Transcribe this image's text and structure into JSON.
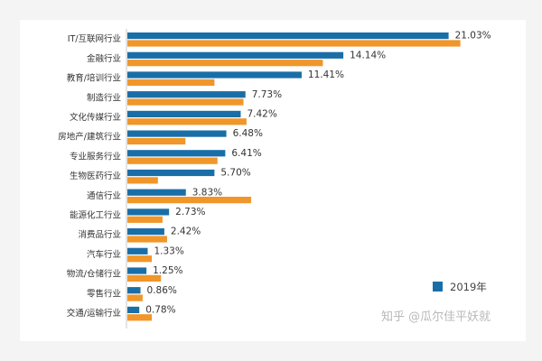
{
  "chart_data": {
    "type": "bar",
    "orientation": "horizontal",
    "categories": [
      "IT/互联网行业",
      "金融行业",
      "教育/培训行业",
      "制造行业",
      "文化传媒行业",
      "房地产/建筑行业",
      "专业服务行业",
      "生物医药行业",
      "通信行业",
      "能源化工行业",
      "消费品行业",
      "汽车行业",
      "物流/仓储行业",
      "零售行业",
      "交通/运输行业"
    ],
    "series": [
      {
        "name": "2019年",
        "color": "#1a6ea8",
        "values": [
          21.03,
          14.14,
          11.41,
          7.73,
          7.42,
          6.48,
          6.41,
          5.7,
          3.83,
          2.73,
          2.42,
          1.33,
          1.25,
          0.86,
          0.78
        ],
        "labels": [
          "21.03%",
          "14.14%",
          "11.41%",
          "7.73%",
          "7.42%",
          "6.48%",
          "6.41%",
          "5.70%",
          "3.83%",
          "2.73%",
          "2.42%",
          "1.33%",
          "1.25%",
          "0.86%",
          "0.78%"
        ]
      },
      {
        "color": "#f0962a",
        "values": [
          21.8,
          12.8,
          5.7,
          7.6,
          7.8,
          3.8,
          5.9,
          2.0,
          8.1,
          2.3,
          2.6,
          1.6,
          2.2,
          1.0,
          1.6
        ]
      }
    ],
    "xlim": [
      0,
      22
    ],
    "grid": false,
    "legend_position": "bottom-right"
  },
  "watermark": "知乎 @瓜尔佳平妖就"
}
